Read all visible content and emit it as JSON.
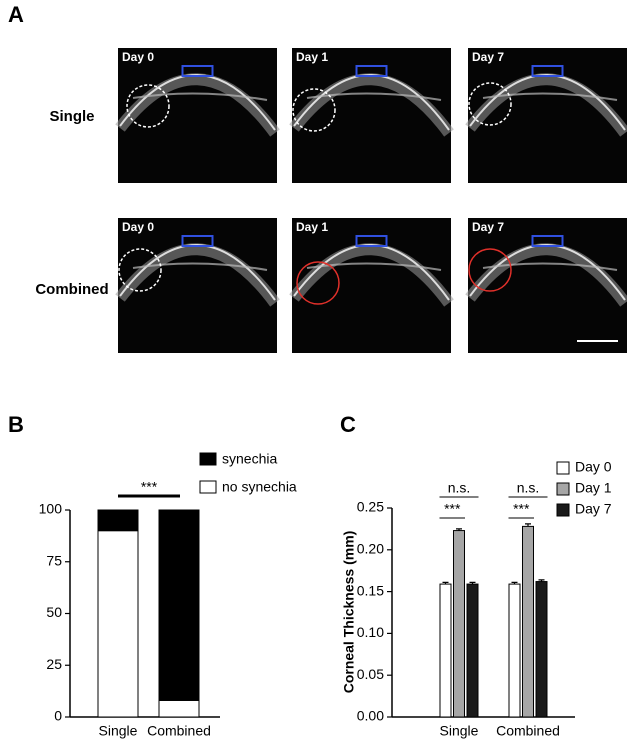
{
  "figure": {
    "panel_labels": [
      "A",
      "B",
      "C"
    ],
    "row_labels": [
      "Single",
      "Combined"
    ],
    "image_labels": [
      [
        "Day 0",
        "Day 1",
        "Day 7"
      ],
      [
        "Day 0",
        "Day 1",
        "Day 7"
      ]
    ]
  },
  "chart_data": [
    {
      "type": "stacked_bar",
      "categories": [
        "Single",
        "Combined"
      ],
      "series": [
        {
          "name": "no synechia",
          "color": "#ffffff",
          "values": [
            90,
            8
          ]
        },
        {
          "name": "synechia",
          "color": "#000000",
          "values": [
            10,
            92
          ]
        }
      ],
      "ylim": [
        0,
        100
      ],
      "yticks": [
        0,
        25,
        50,
        75,
        100
      ],
      "annotations": [
        "***"
      ]
    },
    {
      "type": "grouped_bar",
      "ylabel": "Corneal Thickness (mm)",
      "categories": [
        "Single",
        "Combined"
      ],
      "series": [
        {
          "name": "Day 0",
          "color": "#ffffff",
          "values": [
            0.159,
            0.159
          ],
          "errors": [
            0.002,
            0.002
          ]
        },
        {
          "name": "Day 1",
          "color": "#a6a6a6",
          "values": [
            0.223,
            0.228
          ],
          "errors": [
            0.002,
            0.003
          ]
        },
        {
          "name": "Day 7",
          "color": "#1a1a1a",
          "values": [
            0.159,
            0.162
          ],
          "errors": [
            0.002,
            0.002
          ]
        }
      ],
      "ylim": [
        0,
        0.25
      ],
      "yticks": [
        {
          "value": 0,
          "label": "0.00"
        },
        {
          "value": 0.05,
          "label": "0.05"
        },
        {
          "value": 0.1,
          "label": "0.10"
        },
        {
          "value": 0.15,
          "label": "0.15"
        },
        {
          "value": 0.2,
          "label": "0.20"
        },
        {
          "value": 0.25,
          "label": "0.25"
        }
      ],
      "annotations": [
        "n.s.",
        "***",
        "n.s.",
        "***"
      ]
    }
  ]
}
